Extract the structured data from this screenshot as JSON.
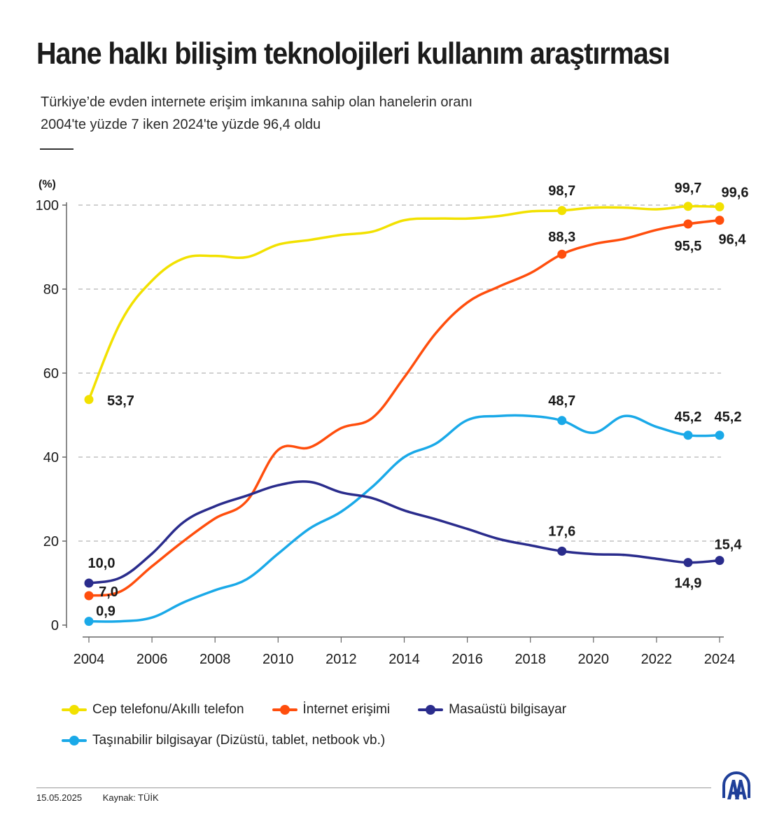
{
  "header": {
    "title": "Hane halkı bilişim teknolojileri kullanım araştırması",
    "subtitle_line1": "Türkiye’de evden internete erişim imkanına sahip olan hanelerin oranı",
    "subtitle_line2": "2004'te yüzde 7 iken 2024'te yüzde 96,4 oldu"
  },
  "footer": {
    "date": "15.05.2025",
    "source": "Kaynak: TÜİK",
    "logo": "AA"
  },
  "colors": {
    "mobile": "#f2e100",
    "internet": "#ff4e0d",
    "desktop": "#2a2c8c",
    "portable": "#1aa9e8",
    "grid": "#b5b5b5",
    "axis": "#666666",
    "logo": "#1f3f99"
  },
  "chart_data": {
    "type": "line",
    "title": "Hane halkı bilişim teknolojileri kullanım araştırması",
    "ylabel": "(%)",
    "xlabel": "",
    "ylim": [
      0,
      100
    ],
    "xlim": [
      2004,
      2024
    ],
    "yticks": [
      0,
      20,
      40,
      60,
      80,
      100
    ],
    "xticks": [
      2004,
      2006,
      2008,
      2010,
      2012,
      2014,
      2016,
      2018,
      2020,
      2022,
      2024
    ],
    "grid": "horizontal-dashed",
    "legend_position": "bottom",
    "x": [
      2004,
      2005,
      2006,
      2007,
      2008,
      2009,
      2010,
      2011,
      2012,
      2013,
      2014,
      2015,
      2016,
      2017,
      2018,
      2019,
      2020,
      2021,
      2022,
      2023,
      2024
    ],
    "series": [
      {
        "key": "mobile",
        "name": "Cep telefonu/Akıllı telefon",
        "values": [
          53.7,
          72.0,
          82.0,
          87.3,
          87.9,
          87.6,
          90.6,
          91.7,
          92.9,
          93.7,
          96.4,
          96.8,
          96.8,
          97.4,
          98.5,
          98.7,
          99.4,
          99.4,
          99.0,
          99.7,
          99.6
        ],
        "markers": [
          {
            "x": 2004,
            "value": 53.7,
            "label": "53,7"
          },
          {
            "x": 2019,
            "value": 98.7,
            "label": "98,7"
          },
          {
            "x": 2023,
            "value": 99.7,
            "label": "99,7"
          },
          {
            "x": 2024,
            "value": 99.6,
            "label": "99,6"
          }
        ]
      },
      {
        "key": "internet",
        "name": "İnternet erişimi",
        "values": [
          7.0,
          8.0,
          14.0,
          20.0,
          25.4,
          29.5,
          41.7,
          42.3,
          46.9,
          49.4,
          59.0,
          69.5,
          76.8,
          80.6,
          83.8,
          88.3,
          90.7,
          92.0,
          94.1,
          95.5,
          96.4
        ],
        "markers": [
          {
            "x": 2004,
            "value": 7.0,
            "label": "7,0"
          },
          {
            "x": 2019,
            "value": 88.3,
            "label": "88,3"
          },
          {
            "x": 2023,
            "value": 95.5,
            "label": "95,5"
          },
          {
            "x": 2024,
            "value": 96.4,
            "label": "96,4"
          }
        ]
      },
      {
        "key": "desktop",
        "name": "Masaüstü bilgisayar",
        "values": [
          10.0,
          11.3,
          17.0,
          24.5,
          28.3,
          30.8,
          33.3,
          34.1,
          31.6,
          30.2,
          27.3,
          25.2,
          22.9,
          20.5,
          19.0,
          17.6,
          16.9,
          16.7,
          15.8,
          14.9,
          15.4
        ],
        "markers": [
          {
            "x": 2004,
            "value": 10.0,
            "label": "10,0"
          },
          {
            "x": 2019,
            "value": 17.6,
            "label": "17,6"
          },
          {
            "x": 2023,
            "value": 14.9,
            "label": "14,9"
          },
          {
            "x": 2024,
            "value": 15.4,
            "label": "15,4"
          }
        ]
      },
      {
        "key": "portable",
        "name": "Taşınabilir bilgisayar (Dizüstü, tablet, netbook vb.)",
        "values": [
          0.9,
          0.9,
          1.8,
          5.4,
          8.3,
          10.9,
          17.0,
          23.0,
          27.0,
          33.0,
          40.0,
          43.2,
          48.8,
          49.8,
          49.8,
          48.7,
          45.8,
          49.8,
          47.2,
          45.2,
          45.2
        ],
        "markers": [
          {
            "x": 2004,
            "value": 0.9,
            "label": "0,9"
          },
          {
            "x": 2019,
            "value": 48.7,
            "label": "48,7"
          },
          {
            "x": 2023,
            "value": 45.2,
            "label": "45,2"
          },
          {
            "x": 2024,
            "value": 45.2,
            "label": "45,2"
          }
        ]
      }
    ]
  }
}
